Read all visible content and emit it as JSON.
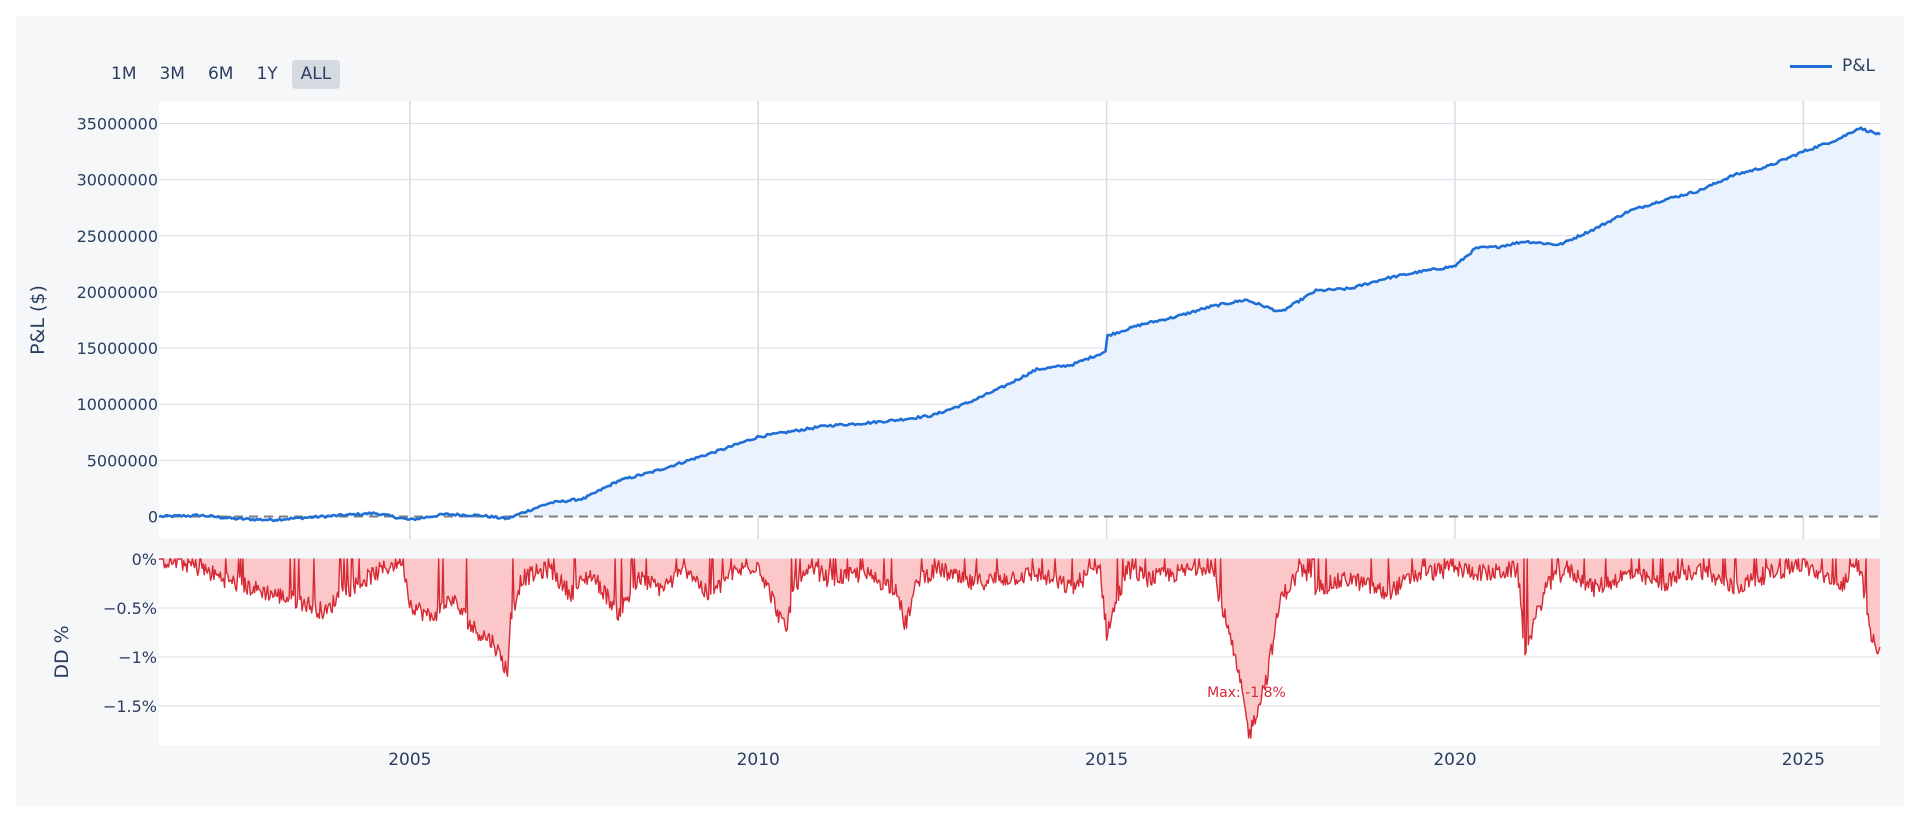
{
  "range_selector": {
    "buttons": [
      "1M",
      "3M",
      "6M",
      "1Y",
      "ALL"
    ],
    "active": "ALL"
  },
  "legend": {
    "label": "P&L"
  },
  "colors": {
    "pnl_line": "#1f6fd6",
    "pnl_fill": "#eaf3fd",
    "dd_line": "#d62a35",
    "dd_fill": "#fcc7c9",
    "zero_line": "#7f7f7f",
    "grid": "#d7dde6",
    "annotation": "#d62a35"
  },
  "chart_data": [
    {
      "type": "area",
      "ylabel": "P&L ($)",
      "xlim": [
        2001.4,
        2026.1
      ],
      "ylim": [
        -2000000,
        37000000
      ],
      "yticks": [
        0,
        5000000,
        10000000,
        15000000,
        20000000,
        25000000,
        30000000,
        35000000
      ],
      "ytick_labels": [
        "0",
        "5000000",
        "10000000",
        "15000000",
        "20000000",
        "25000000",
        "30000000",
        "35000000"
      ],
      "reference_line": {
        "y": 0,
        "style": "dashed"
      },
      "grid": true,
      "series": [
        {
          "name": "P&L",
          "x": [
            2001.4,
            2002.0,
            2002.5,
            2003.0,
            2003.5,
            2004.0,
            2004.5,
            2005.0,
            2005.5,
            2006.0,
            2006.4,
            2006.6,
            2007.0,
            2007.5,
            2008.0,
            2008.5,
            2009.0,
            2009.5,
            2010.0,
            2010.5,
            2011.0,
            2011.5,
            2012.0,
            2012.5,
            2013.0,
            2013.5,
            2014.0,
            2014.5,
            2014.99,
            2015.01,
            2015.5,
            2016.0,
            2016.5,
            2017.0,
            2017.5,
            2018.0,
            2018.5,
            2019.0,
            2019.5,
            2020.0,
            2020.3,
            2020.6,
            2021.0,
            2021.5,
            2022.0,
            2022.5,
            2023.0,
            2023.5,
            2024.0,
            2024.5,
            2025.0,
            2025.5,
            2025.8,
            2026.1
          ],
          "values": [
            0,
            100000,
            -200000,
            -300000,
            -100000,
            100000,
            300000,
            -300000,
            200000,
            100000,
            -200000,
            300000,
            1200000,
            1600000,
            3200000,
            4000000,
            5000000,
            6000000,
            7100000,
            7600000,
            8100000,
            8300000,
            8600000,
            9000000,
            10100000,
            11500000,
            13100000,
            13500000,
            14700000,
            16100000,
            17100000,
            17800000,
            18700000,
            19300000,
            18200000,
            20100000,
            20300000,
            21200000,
            21800000,
            22300000,
            23900000,
            24000000,
            24500000,
            24200000,
            25600000,
            27200000,
            28200000,
            29000000,
            30400000,
            31200000,
            32500000,
            33600000,
            34600000,
            34000000
          ]
        }
      ]
    },
    {
      "type": "area",
      "ylabel": "DD %",
      "xlabel": "",
      "xlim": [
        2001.4,
        2026.1
      ],
      "ylim": [
        -1.9,
        0
      ],
      "yticks": [
        0,
        -0.5,
        -1,
        -1.5
      ],
      "ytick_labels": [
        "0%",
        "−0.5%",
        "−1%",
        "−1.5%"
      ],
      "xticks": [
        2005,
        2010,
        2015,
        2020,
        2025
      ],
      "xtick_labels": [
        "2005",
        "2010",
        "2015",
        "2020",
        "2025"
      ],
      "grid": true,
      "annotation": {
        "text": "Max: -1.8%",
        "x": 2017.05,
        "y": -1.8
      },
      "series": [
        {
          "name": "",
          "x": [
            2001.4,
            2001.8,
            2002.0,
            2002.5,
            2003.0,
            2003.5,
            2003.8,
            2004.0,
            2004.5,
            2004.9,
            2005.0,
            2005.3,
            2005.6,
            2005.9,
            2006.2,
            2006.4,
            2006.45,
            2006.6,
            2007.0,
            2007.3,
            2007.6,
            2008.0,
            2008.3,
            2008.6,
            2009.0,
            2009.3,
            2009.6,
            2010.0,
            2010.4,
            2010.5,
            2010.8,
            2011.0,
            2011.5,
            2012.0,
            2012.1,
            2012.3,
            2012.6,
            2013.0,
            2013.5,
            2014.0,
            2014.5,
            2014.9,
            2015.0,
            2015.3,
            2015.6,
            2016.0,
            2016.5,
            2016.7,
            2016.9,
            2017.05,
            2017.3,
            2017.5,
            2017.8,
            2018.0,
            2018.5,
            2019.0,
            2019.5,
            2020.0,
            2020.5,
            2020.9,
            2021.0,
            2021.3,
            2021.6,
            2022.0,
            2022.5,
            2023.0,
            2023.5,
            2024.0,
            2024.5,
            2025.0,
            2025.5,
            2025.8,
            2026.0,
            2026.1
          ],
          "values": [
            0,
            -0.05,
            -0.1,
            -0.25,
            -0.35,
            -0.45,
            -0.55,
            -0.35,
            -0.15,
            0,
            -0.45,
            -0.6,
            -0.4,
            -0.7,
            -0.85,
            -1.15,
            -0.6,
            -0.2,
            -0.1,
            -0.35,
            -0.15,
            -0.55,
            -0.2,
            -0.3,
            -0.1,
            -0.4,
            -0.15,
            -0.05,
            -0.75,
            -0.3,
            -0.1,
            -0.2,
            -0.15,
            -0.3,
            -0.7,
            -0.2,
            -0.1,
            -0.25,
            -0.2,
            -0.15,
            -0.3,
            -0.05,
            -0.75,
            -0.1,
            -0.2,
            -0.15,
            -0.05,
            -0.6,
            -1.2,
            -1.8,
            -1.2,
            -0.4,
            -0.1,
            -0.3,
            -0.2,
            -0.35,
            -0.15,
            -0.1,
            -0.15,
            -0.1,
            -0.95,
            -0.3,
            -0.1,
            -0.3,
            -0.15,
            -0.25,
            -0.1,
            -0.3,
            -0.15,
            -0.05,
            -0.3,
            -0.05,
            -0.85,
            -0.9
          ]
        }
      ]
    }
  ]
}
